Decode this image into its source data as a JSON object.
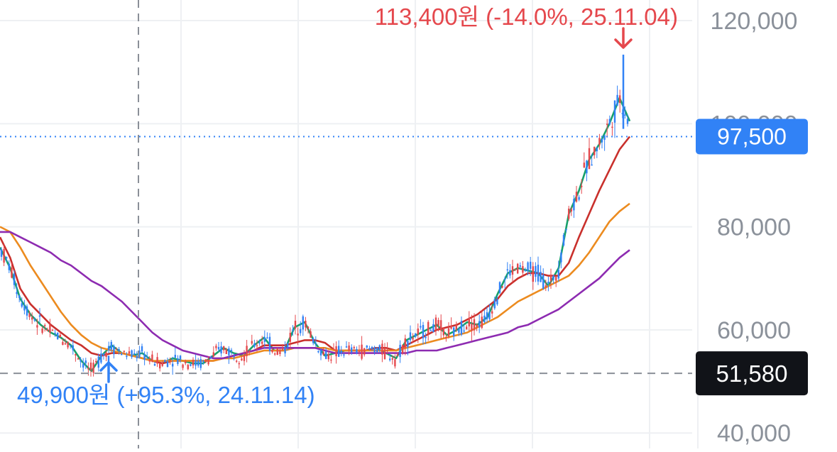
{
  "chart_data": {
    "type": "candlestick",
    "y_axis": {
      "position": "right",
      "ticks": [
        "120,000",
        "100,000",
        "80,000",
        "60,000",
        "40,000"
      ],
      "tick_values": [
        120000,
        100000,
        80000,
        60000,
        40000
      ],
      "range": [
        37000,
        124000
      ],
      "grid": true
    },
    "current_price": {
      "value": 97500,
      "label": "97,500",
      "color": "#3182f6"
    },
    "crosshair_price": {
      "value": 51580,
      "label": "51,580"
    },
    "annotations": {
      "high": {
        "text": "113,400원 (-14.0%, 25.11.04)",
        "value": 113400,
        "color": "#e5484d"
      },
      "low": {
        "text": "49,900원 (+95.3%, 24.11.14)",
        "value": 49900,
        "color": "#3182f6"
      }
    },
    "series": [
      {
        "color": "#18a06a",
        "values": [
          76000,
          72000,
          66000,
          63000,
          61000,
          59500,
          58500,
          57000,
          54000,
          52000,
          55000,
          57000,
          55500,
          55000,
          55500,
          54000,
          53500,
          54500,
          54000,
          53500,
          53500,
          55000,
          56500,
          55500,
          55000,
          57000,
          58500,
          56000,
          56000,
          60500,
          61500,
          57500,
          55000,
          55500,
          56000,
          56000,
          56000,
          56500,
          55500,
          54500,
          58000,
          59000,
          60000,
          61000,
          59000,
          60000,
          61500,
          61000,
          62500,
          67000,
          71000,
          72000,
          71500,
          71000,
          68500,
          72000,
          82500,
          87000,
          93000,
          96000,
          100000,
          105000,
          100500
        ]
      },
      {
        "color": "#c9302c",
        "values": [
          78000,
          74000,
          68000,
          65000,
          63000,
          61000,
          59500,
          58000,
          57000,
          55500,
          55000,
          55500,
          55500,
          55000,
          54500,
          54000,
          53500,
          54000,
          54000,
          54000,
          54000,
          54000,
          54500,
          55000,
          55500,
          56000,
          57000,
          57000,
          57000,
          57500,
          58000,
          58000,
          57500,
          56000,
          56000,
          56000,
          56000,
          56500,
          56500,
          56000,
          57000,
          58000,
          59000,
          60000,
          60500,
          61000,
          62000,
          63000,
          64500,
          66000,
          68500,
          70000,
          71000,
          71000,
          70500,
          70500,
          73000,
          78000,
          82500,
          87000,
          91000,
          95000,
          97500
        ]
      },
      {
        "color": "#ec8b1f",
        "values": [
          80000,
          79000,
          76000,
          72500,
          69500,
          66500,
          63500,
          61000,
          59000,
          57500,
          56500,
          56000,
          55500,
          55000,
          54500,
          54000,
          54000,
          54000,
          54000,
          54000,
          54000,
          54000,
          54500,
          54500,
          55000,
          55500,
          56000,
          56000,
          56000,
          56500,
          56500,
          56500,
          56500,
          56000,
          56000,
          56000,
          56000,
          56000,
          56000,
          56000,
          56500,
          57000,
          57500,
          58000,
          58500,
          59000,
          59500,
          60500,
          61500,
          62500,
          64000,
          65500,
          66500,
          67500,
          68500,
          69500,
          70500,
          72500,
          75000,
          78000,
          81000,
          83000,
          84500
        ]
      },
      {
        "color": "#8d2bb1",
        "values": [
          79000,
          79000,
          78000,
          77000,
          76000,
          75000,
          73500,
          72500,
          71000,
          69500,
          68500,
          67000,
          65500,
          63500,
          61500,
          59500,
          58000,
          57000,
          56000,
          55500,
          55000,
          54500,
          54500,
          55000,
          55500,
          56000,
          56500,
          56500,
          56500,
          56500,
          56500,
          56500,
          56000,
          55500,
          55500,
          55500,
          55500,
          55500,
          55500,
          55500,
          55500,
          56000,
          56000,
          56000,
          56500,
          57000,
          57500,
          58000,
          58500,
          59000,
          59500,
          60500,
          61000,
          62000,
          63000,
          64000,
          65500,
          67000,
          68500,
          70000,
          72000,
          74000,
          75500
        ]
      }
    ]
  }
}
